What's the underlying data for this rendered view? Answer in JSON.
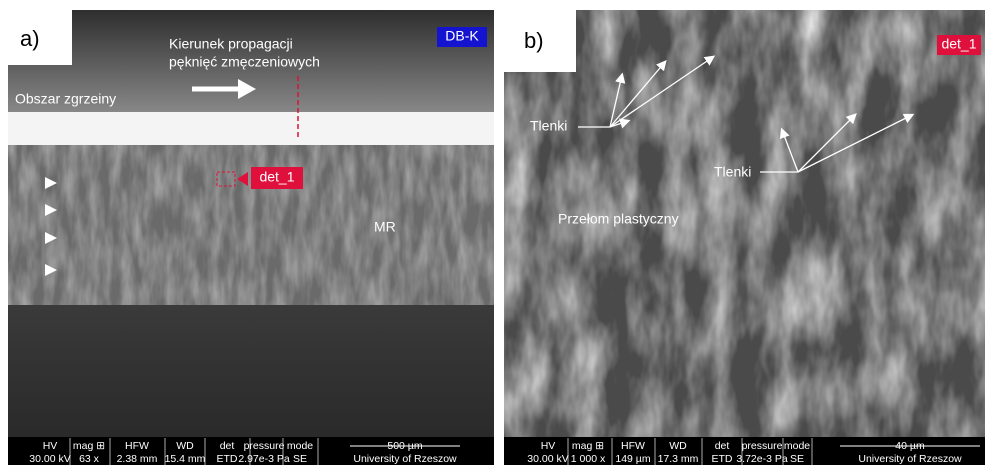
{
  "panel_a": {
    "label": "a)",
    "badge": "DB-K",
    "direction_label": [
      "Kierunek  propagacji",
      "pęknięć zmęczeniowych"
    ],
    "weld_label": "Obszar zgrzeiny",
    "detail_label": "det_1",
    "zone_label": "MR",
    "info_bar": {
      "headers": [
        "HV",
        "mag ⊞",
        "HFW",
        "WD",
        "det",
        "pressure",
        "mode",
        "500 µm"
      ],
      "values": [
        "30.00 kV",
        "63 x",
        "2.38 mm",
        "15.4 mm",
        "ETD",
        "2.97e-3 Pa",
        "SE",
        "University of Rzeszow"
      ]
    }
  },
  "panel_b": {
    "label": "b)",
    "badge": "det_1",
    "oxide_labels": [
      "Tlenki",
      "Tlenki"
    ],
    "fracture_label": "Przełom plastyczny",
    "info_bar": {
      "headers": [
        "HV",
        "mag ⊞",
        "HFW",
        "WD",
        "det",
        "pressure",
        "mode",
        "40 µm"
      ],
      "values": [
        "30.00 kV",
        "1 000 x",
        "149 µm",
        "17.3 mm",
        "ETD",
        "3.72e-3 Pa",
        "SE",
        "University of Rzeszow"
      ]
    }
  }
}
